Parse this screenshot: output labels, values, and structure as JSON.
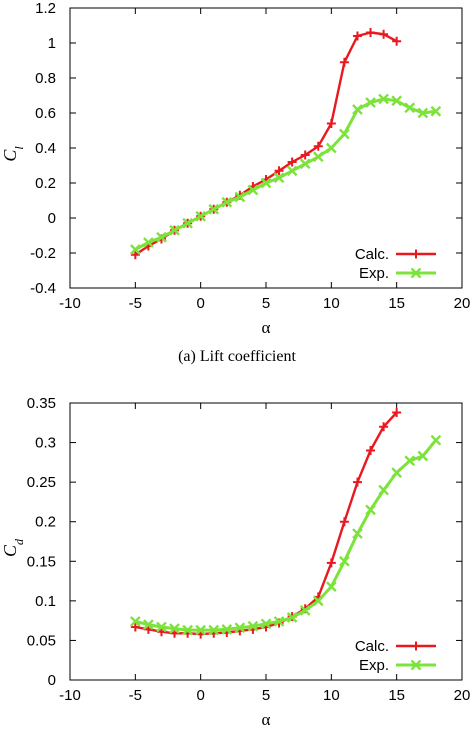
{
  "captions": {
    "top": "(a)  Lift coefficient"
  },
  "colors": {
    "calc": "#e8191f",
    "exp": "#7ce33b"
  },
  "chart_data": [
    {
      "type": "line",
      "xlabel": "α",
      "ylabel": "C_l",
      "xlim": [
        -10,
        20
      ],
      "ylim": [
        -0.4,
        1.2
      ],
      "xticks": [
        "-10",
        "-5",
        "0",
        "5",
        "10",
        "15",
        "20"
      ],
      "yticks": [
        "-0.4",
        "-0.2",
        "0",
        "0.2",
        "0.4",
        "0.6",
        "0.8",
        "1",
        "1.2"
      ],
      "grid": false,
      "legend_position": "bottom-right",
      "series": [
        {
          "name": "Calc.",
          "marker": "plus",
          "x": [
            -5,
            -4,
            -3,
            -2,
            -1,
            0,
            1,
            2,
            3,
            4,
            5,
            6,
            7,
            8,
            9,
            10,
            11,
            12,
            13,
            14,
            15
          ],
          "y": [
            -0.21,
            -0.16,
            -0.12,
            -0.07,
            -0.03,
            0.01,
            0.05,
            0.09,
            0.13,
            0.18,
            0.22,
            0.27,
            0.32,
            0.36,
            0.41,
            0.54,
            0.89,
            1.04,
            1.06,
            1.05,
            1.01
          ]
        },
        {
          "name": "Exp.",
          "marker": "cross",
          "x": [
            -5,
            -4,
            -3,
            -2,
            -1,
            0,
            1,
            2,
            3,
            4,
            5,
            6,
            7,
            8,
            9,
            10,
            11,
            12,
            13,
            14,
            15,
            16,
            17,
            18
          ],
          "y": [
            -0.18,
            -0.14,
            -0.11,
            -0.07,
            -0.03,
            0.01,
            0.05,
            0.09,
            0.12,
            0.16,
            0.2,
            0.23,
            0.27,
            0.31,
            0.35,
            0.4,
            0.48,
            0.62,
            0.66,
            0.68,
            0.67,
            0.63,
            0.6,
            0.61
          ]
        }
      ]
    },
    {
      "type": "line",
      "xlabel": "α",
      "ylabel": "C_d",
      "xlim": [
        -10,
        20
      ],
      "ylim": [
        0,
        0.35
      ],
      "xticks": [
        "-10",
        "-5",
        "0",
        "5",
        "10",
        "15",
        "20"
      ],
      "yticks": [
        "0",
        "0.05",
        "0.1",
        "0.15",
        "0.2",
        "0.25",
        "0.3",
        "0.35"
      ],
      "grid": false,
      "legend_position": "bottom-right",
      "series": [
        {
          "name": "Calc.",
          "marker": "plus",
          "x": [
            -5,
            -4,
            -3,
            -2,
            -1,
            0,
            1,
            2,
            3,
            4,
            5,
            6,
            7,
            8,
            9,
            10,
            11,
            12,
            13,
            14,
            15
          ],
          "y": [
            0.067,
            0.064,
            0.061,
            0.059,
            0.059,
            0.058,
            0.059,
            0.06,
            0.062,
            0.064,
            0.067,
            0.072,
            0.08,
            0.09,
            0.105,
            0.148,
            0.2,
            0.25,
            0.29,
            0.32,
            0.338
          ]
        },
        {
          "name": "Exp.",
          "marker": "cross",
          "x": [
            -5,
            -4,
            -3,
            -2,
            -1,
            0,
            1,
            2,
            3,
            4,
            5,
            6,
            7,
            8,
            9,
            10,
            11,
            12,
            13,
            14,
            15,
            16,
            17,
            18
          ],
          "y": [
            0.074,
            0.07,
            0.067,
            0.065,
            0.063,
            0.063,
            0.063,
            0.064,
            0.066,
            0.068,
            0.071,
            0.074,
            0.079,
            0.088,
            0.1,
            0.118,
            0.15,
            0.185,
            0.215,
            0.24,
            0.262,
            0.277,
            0.283,
            0.303
          ]
        }
      ]
    }
  ]
}
